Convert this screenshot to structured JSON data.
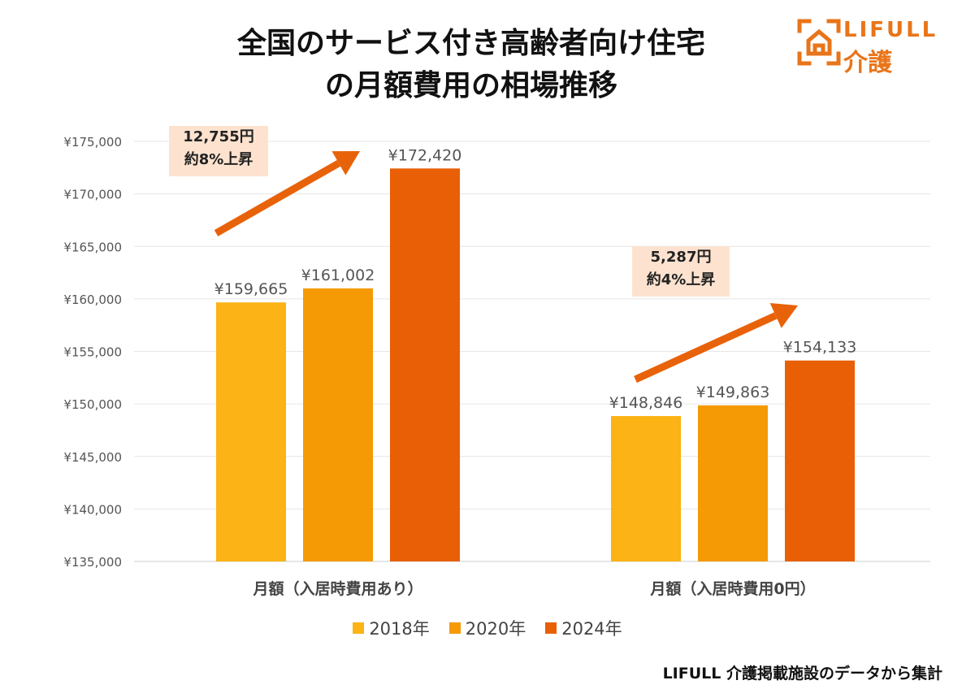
{
  "title_lines": [
    "全国のサービス付き高齢者向け住宅",
    "の月額費用の相場推移"
  ],
  "logo": {
    "brand": "LIFULL",
    "sub": "介護",
    "color": "#E8751A"
  },
  "chart_data": {
    "type": "bar",
    "categories": [
      "月額（入居時費用あり）",
      "月額（入居時費用0円）"
    ],
    "series": [
      {
        "name": "2018年",
        "color": "#FBB315",
        "values": [
          159665,
          148846
        ]
      },
      {
        "name": "2020年",
        "color": "#F59A05",
        "values": [
          161002,
          149863
        ]
      },
      {
        "name": "2024年",
        "color": "#E85F06",
        "values": [
          172420,
          154133
        ]
      }
    ],
    "data_labels": [
      [
        "¥159,665",
        "¥148,846"
      ],
      [
        "¥161,002",
        "¥149,863"
      ],
      [
        "¥172,420",
        "¥154,133"
      ]
    ],
    "yticks": [
      135000,
      140000,
      145000,
      150000,
      155000,
      160000,
      165000,
      170000,
      175000
    ],
    "ytick_labels": [
      "¥135,000",
      "¥140,000",
      "¥145,000",
      "¥150,000",
      "¥155,000",
      "¥160,000",
      "¥165,000",
      "¥170,000",
      "¥175,000"
    ],
    "ylim": [
      135000,
      175000
    ],
    "grid": true,
    "legend_position": "bottom",
    "annotations": [
      {
        "line1": "12,755円",
        "line2": "約8%上昇"
      },
      {
        "line1": "5,287円",
        "line2": "約4%上昇"
      }
    ],
    "arrow_color": "#E8620A",
    "callout_bg": "#FDE3CF"
  },
  "source": "LIFULL 介護掲載施設のデータから集計"
}
